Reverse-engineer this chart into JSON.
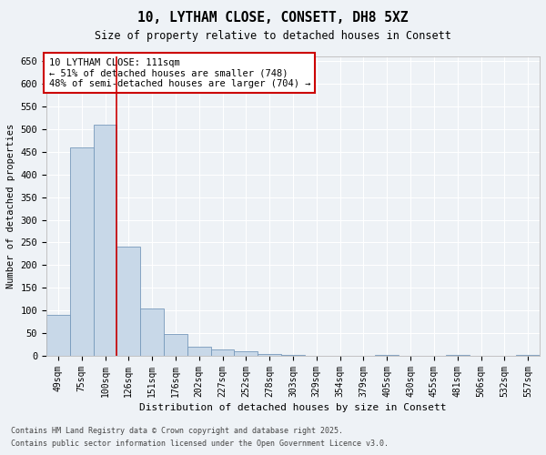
{
  "title_line1": "10, LYTHAM CLOSE, CONSETT, DH8 5XZ",
  "title_line2": "Size of property relative to detached houses in Consett",
  "xlabel": "Distribution of detached houses by size in Consett",
  "ylabel": "Number of detached properties",
  "categories": [
    "49sqm",
    "75sqm",
    "100sqm",
    "126sqm",
    "151sqm",
    "176sqm",
    "202sqm",
    "227sqm",
    "252sqm",
    "278sqm",
    "303sqm",
    "329sqm",
    "354sqm",
    "379sqm",
    "405sqm",
    "430sqm",
    "455sqm",
    "481sqm",
    "506sqm",
    "532sqm",
    "557sqm"
  ],
  "values": [
    90,
    460,
    510,
    240,
    105,
    48,
    20,
    15,
    10,
    4,
    3,
    0,
    0,
    0,
    2,
    0,
    0,
    2,
    0,
    0,
    2
  ],
  "bar_color": "#c8d8e8",
  "bar_edge_color": "#7799bb",
  "vline_x": 2.5,
  "vline_color": "#cc0000",
  "annotation_text": "10 LYTHAM CLOSE: 111sqm\n← 51% of detached houses are smaller (748)\n48% of semi-detached houses are larger (704) →",
  "annotation_box_facecolor": "#ffffff",
  "annotation_box_edgecolor": "#cc0000",
  "ylim": [
    0,
    660
  ],
  "yticks": [
    0,
    50,
    100,
    150,
    200,
    250,
    300,
    350,
    400,
    450,
    500,
    550,
    600,
    650
  ],
  "background_color": "#eef2f6",
  "grid_color": "#ffffff",
  "footer_line1": "Contains HM Land Registry data © Crown copyright and database right 2025.",
  "footer_line2": "Contains public sector information licensed under the Open Government Licence v3.0."
}
